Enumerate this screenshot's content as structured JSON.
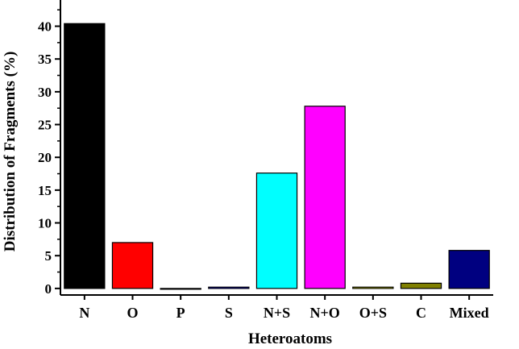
{
  "chart_data": {
    "type": "bar",
    "title": "",
    "xlabel": "Heteroatoms",
    "ylabel": "Distribution of Fragments (%)",
    "categories": [
      "N",
      "O",
      "P",
      "S",
      "N+S",
      "N+O",
      "O+S",
      "C",
      "Mixed"
    ],
    "values": [
      40.4,
      7.0,
      0.0,
      0.2,
      17.6,
      27.8,
      0.2,
      0.8,
      5.8
    ],
    "colors": [
      "#000000",
      "#ff0000",
      "#00ee00",
      "#0000ff",
      "#00ffff",
      "#ff00ff",
      "#ffff00",
      "#808000",
      "#000080"
    ],
    "ylim": [
      -1,
      44
    ],
    "yticks": [
      0,
      5,
      10,
      15,
      20,
      25,
      30,
      35,
      40
    ],
    "grid": false,
    "legend": "none"
  }
}
